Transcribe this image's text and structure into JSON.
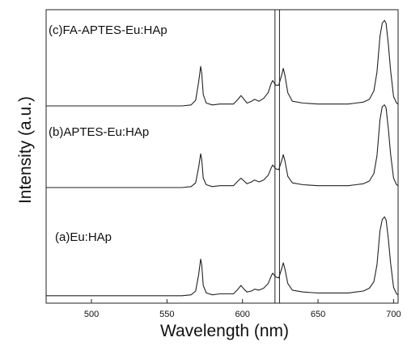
{
  "chart_data": {
    "type": "line",
    "xlabel": "Wavelength (nm)",
    "ylabel": "Intensity (a.u.)",
    "xlim": [
      470,
      703
    ],
    "x_ticks": [
      500,
      550,
      600,
      650,
      700
    ],
    "y_ticks_shown": false,
    "grid": false,
    "legend": "none",
    "stacked_offset": true,
    "reference_lines_x": [
      621.5,
      624.5
    ],
    "series": [
      {
        "name": "(a)Eu:HAp",
        "offset": 0.0,
        "points": [
          [
            470,
            0.01
          ],
          [
            500,
            0.01
          ],
          [
            540,
            0.01
          ],
          [
            560,
            0.01
          ],
          [
            566,
            0.02
          ],
          [
            569,
            0.06
          ],
          [
            571,
            0.24
          ],
          [
            572.3,
            0.4
          ],
          [
            573,
            0.34
          ],
          [
            574,
            0.12
          ],
          [
            576,
            0.04
          ],
          [
            580,
            0.02
          ],
          [
            585,
            0.03
          ],
          [
            590,
            0.03
          ],
          [
            594,
            0.03
          ],
          [
            597,
            0.08
          ],
          [
            599,
            0.12
          ],
          [
            601,
            0.08
          ],
          [
            603,
            0.05
          ],
          [
            606,
            0.06
          ],
          [
            608,
            0.08
          ],
          [
            611,
            0.07
          ],
          [
            614,
            0.09
          ],
          [
            617,
            0.14
          ],
          [
            619,
            0.22
          ],
          [
            620,
            0.25
          ],
          [
            622,
            0.21
          ],
          [
            624,
            0.2
          ],
          [
            626,
            0.3
          ],
          [
            627,
            0.36
          ],
          [
            628,
            0.3
          ],
          [
            630,
            0.14
          ],
          [
            633,
            0.07
          ],
          [
            640,
            0.05
          ],
          [
            650,
            0.04
          ],
          [
            660,
            0.04
          ],
          [
            670,
            0.04
          ],
          [
            675,
            0.05
          ],
          [
            680,
            0.06
          ],
          [
            684,
            0.09
          ],
          [
            687,
            0.16
          ],
          [
            689,
            0.34
          ],
          [
            691,
            0.7
          ],
          [
            692.5,
            0.82
          ],
          [
            694,
            0.85
          ],
          [
            695,
            0.82
          ],
          [
            696.5,
            0.62
          ],
          [
            698,
            0.36
          ],
          [
            700,
            0.1
          ],
          [
            702,
            0.03
          ],
          [
            703,
            0.02
          ]
        ]
      },
      {
        "name": "(b)APTES-Eu:HAp",
        "offset": 1.0,
        "points": [
          [
            470,
            0.0
          ],
          [
            500,
            0.0
          ],
          [
            540,
            0.0
          ],
          [
            560,
            0.0
          ],
          [
            566,
            0.01
          ],
          [
            569,
            0.05
          ],
          [
            571,
            0.22
          ],
          [
            572.3,
            0.36
          ],
          [
            573,
            0.3
          ],
          [
            574,
            0.1
          ],
          [
            576,
            0.03
          ],
          [
            580,
            0.01
          ],
          [
            585,
            0.02
          ],
          [
            590,
            0.02
          ],
          [
            594,
            0.02
          ],
          [
            597,
            0.07
          ],
          [
            599,
            0.1
          ],
          [
            601,
            0.07
          ],
          [
            603,
            0.04
          ],
          [
            606,
            0.06
          ],
          [
            608,
            0.08
          ],
          [
            611,
            0.06
          ],
          [
            614,
            0.08
          ],
          [
            617,
            0.13
          ],
          [
            619,
            0.21
          ],
          [
            620,
            0.24
          ],
          [
            622,
            0.2
          ],
          [
            624,
            0.19
          ],
          [
            626,
            0.29
          ],
          [
            627,
            0.35
          ],
          [
            628,
            0.29
          ],
          [
            630,
            0.12
          ],
          [
            633,
            0.05
          ],
          [
            640,
            0.03
          ],
          [
            650,
            0.02
          ],
          [
            660,
            0.02
          ],
          [
            670,
            0.02
          ],
          [
            675,
            0.03
          ],
          [
            680,
            0.04
          ],
          [
            684,
            0.07
          ],
          [
            687,
            0.15
          ],
          [
            689,
            0.34
          ],
          [
            691,
            0.72
          ],
          [
            692.5,
            0.86
          ],
          [
            694,
            0.88
          ],
          [
            695,
            0.85
          ],
          [
            696.5,
            0.63
          ],
          [
            698,
            0.36
          ],
          [
            700,
            0.1
          ],
          [
            702,
            0.03
          ],
          [
            703,
            0.02
          ]
        ]
      },
      {
        "name": "(c)FA-APTES-Eu:HAp",
        "offset": 2.0,
        "points": [
          [
            470,
            0.0
          ],
          [
            500,
            0.0
          ],
          [
            540,
            0.0
          ],
          [
            560,
            0.0
          ],
          [
            566,
            0.01
          ],
          [
            569,
            0.06
          ],
          [
            571,
            0.26
          ],
          [
            572.3,
            0.42
          ],
          [
            573,
            0.35
          ],
          [
            574,
            0.12
          ],
          [
            576,
            0.03
          ],
          [
            580,
            0.01
          ],
          [
            585,
            0.02
          ],
          [
            590,
            0.02
          ],
          [
            594,
            0.02
          ],
          [
            597,
            0.07
          ],
          [
            599,
            0.11
          ],
          [
            601,
            0.07
          ],
          [
            603,
            0.03
          ],
          [
            606,
            0.05
          ],
          [
            608,
            0.07
          ],
          [
            611,
            0.05
          ],
          [
            614,
            0.08
          ],
          [
            617,
            0.14
          ],
          [
            619,
            0.24
          ],
          [
            620,
            0.27
          ],
          [
            622,
            0.22
          ],
          [
            624,
            0.22
          ],
          [
            626,
            0.33
          ],
          [
            627,
            0.4
          ],
          [
            628,
            0.33
          ],
          [
            630,
            0.14
          ],
          [
            633,
            0.05
          ],
          [
            640,
            0.03
          ],
          [
            650,
            0.02
          ],
          [
            660,
            0.02
          ],
          [
            670,
            0.02
          ],
          [
            675,
            0.03
          ],
          [
            680,
            0.04
          ],
          [
            684,
            0.07
          ],
          [
            687,
            0.16
          ],
          [
            689,
            0.36
          ],
          [
            691,
            0.74
          ],
          [
            692.5,
            0.88
          ],
          [
            694,
            0.91
          ],
          [
            695,
            0.88
          ],
          [
            696.5,
            0.66
          ],
          [
            698,
            0.38
          ],
          [
            700,
            0.1
          ],
          [
            702,
            0.03
          ],
          [
            703,
            0.02
          ]
        ]
      }
    ]
  }
}
